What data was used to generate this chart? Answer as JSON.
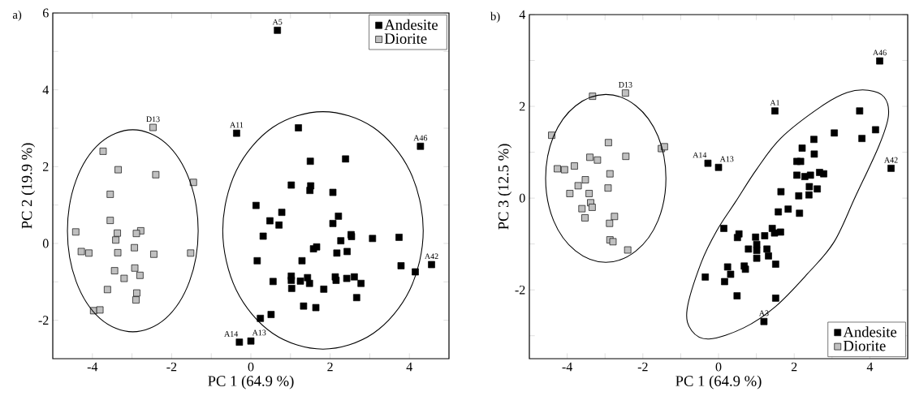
{
  "chart_data": [
    {
      "type": "scatter",
      "title": "a)",
      "xlabel": "PC 1 (64.9 %)",
      "ylabel": "PC 2 (19.9 %)",
      "xlim": [
        -5,
        5
      ],
      "ylim": [
        -3,
        6
      ],
      "legend": "top right",
      "xticks": [
        -4,
        {
          "value": -3,
          "label": null
        },
        -2,
        {
          "value": -1,
          "label": null
        },
        0,
        {
          "value": 1,
          "label": null
        },
        2,
        {
          "value": 3,
          "label": null
        },
        4
      ],
      "yticks": [
        -2,
        {
          "value": -1,
          "label": null
        },
        0,
        {
          "value": 1,
          "label": null
        },
        2,
        {
          "value": 3,
          "label": null
        },
        4,
        {
          "value": 5,
          "label": null
        },
        6
      ],
      "series": [
        {
          "name": "Andesite",
          "color": "#000000",
          "marker": "square",
          "x": [
            0.67,
            -0.36,
            1.2,
            4.28,
            1.5,
            2.39,
            1.02,
            1.51,
            1.49,
            2.07,
            0.13,
            0.78,
            0.48,
            0.71,
            2.07,
            2.21,
            0.31,
            2.53,
            2.54,
            2.27,
            3.07,
            3.74,
            1.58,
            1.66,
            2.17,
            2.43,
            0.16,
            1.29,
            3.79,
            4.56,
            4.15,
            0.56,
            1.02,
            1.02,
            1.25,
            1.43,
            1.48,
            1.03,
            2.13,
            2.15,
            2.42,
            2.61,
            2.78,
            1.84,
            2.67,
            1.33,
            1.64,
            0.51,
            0.24,
            -0.29,
            0.0
          ],
          "values": [
            5.55,
            2.87,
            3.01,
            2.53,
            2.14,
            2.2,
            1.52,
            1.5,
            1.38,
            1.33,
            0.99,
            0.81,
            0.59,
            0.48,
            0.52,
            0.71,
            0.19,
            0.23,
            0.18,
            0.07,
            0.13,
            0.16,
            -0.14,
            -0.09,
            -0.25,
            -0.21,
            -0.45,
            -0.45,
            -0.58,
            -0.55,
            -0.74,
            -0.99,
            -0.85,
            -0.96,
            -0.98,
            -0.89,
            -1.04,
            -1.17,
            -0.87,
            -0.96,
            -0.91,
            -0.87,
            -1.04,
            -1.19,
            -1.41,
            -1.63,
            -1.67,
            -1.85,
            -1.95,
            -2.57,
            -2.54
          ]
        },
        {
          "name": "Diorite",
          "color": "#c0c0c0",
          "marker": "square",
          "x": [
            -2.47,
            -3.73,
            -3.35,
            -2.4,
            -1.45,
            -3.55,
            -3.55,
            -4.42,
            -3.37,
            -2.78,
            -2.89,
            -3.41,
            -2.94,
            -4.28,
            -4.09,
            -3.36,
            -2.45,
            -1.52,
            -3.44,
            -2.93,
            -2.8,
            -3.2,
            -3.62,
            -2.88,
            -2.9,
            -3.97,
            -3.81
          ],
          "values": [
            3.02,
            2.4,
            1.92,
            1.79,
            1.59,
            1.28,
            0.6,
            0.3,
            0.27,
            0.33,
            0.26,
            0.09,
            -0.11,
            -0.21,
            -0.25,
            -0.24,
            -0.28,
            -0.25,
            -0.71,
            -0.64,
            -0.83,
            -0.91,
            -1.2,
            -1.29,
            -1.47,
            -1.75,
            -1.73
          ]
        }
      ],
      "annotations": [
        {
          "text": "A5",
          "x": 0.67,
          "y": 5.55
        },
        {
          "text": "A11",
          "x": -0.36,
          "y": 2.87
        },
        {
          "text": "D13",
          "x": -2.47,
          "y": 3.02
        },
        {
          "text": "A46",
          "x": 4.28,
          "y": 2.53
        },
        {
          "text": "A42",
          "x": 4.56,
          "y": -0.55
        },
        {
          "text": "A14",
          "x": -0.29,
          "y": -2.57
        },
        {
          "text": "A13",
          "x": 0.0,
          "y": -2.54
        }
      ]
    },
    {
      "type": "scatter",
      "title": "b)",
      "xlabel": "PC 1 (64.9 %)",
      "ylabel": "PC 3 (12.5 %)",
      "xlim": [
        -5,
        5
      ],
      "ylim": [
        -3.5,
        4
      ],
      "legend": "bottom right",
      "xticks": [
        -4,
        {
          "value": -3,
          "label": null
        },
        -2,
        {
          "value": -1,
          "label": null
        },
        0,
        {
          "value": 1,
          "label": null
        },
        2,
        {
          "value": 3,
          "label": null
        },
        4
      ],
      "yticks": [
        {
          "value": -3,
          "label": null
        },
        -2,
        {
          "value": -1,
          "label": null
        },
        0,
        {
          "value": 1,
          "label": null
        },
        2,
        {
          "value": 3,
          "label": null
        },
        4
      ],
      "series": [
        {
          "name": "Andesite",
          "color": "#000000",
          "marker": "square",
          "x": [
            4.26,
            1.49,
            3.73,
            4.15,
            3.06,
            3.79,
            2.52,
            2.21,
            2.53,
            -0.28,
            0.0,
            4.56,
            2.07,
            2.17,
            2.07,
            2.28,
            2.43,
            2.67,
            2.78,
            2.4,
            2.61,
            1.65,
            2.12,
            2.39,
            1.58,
            1.84,
            2.14,
            0.14,
            0.54,
            0.5,
            0.98,
            1.22,
            1.42,
            1.48,
            1.64,
            1.01,
            0.79,
            1.01,
            1.28,
            1.01,
            1.32,
            1.51,
            0.24,
            0.68,
            0.71,
            0.32,
            -0.35,
            0.16,
            0.49,
            1.51,
            1.2
          ],
          "values": [
            2.99,
            1.9,
            1.9,
            1.49,
            1.42,
            1.3,
            1.28,
            1.09,
            0.96,
            0.76,
            0.67,
            0.65,
            0.8,
            0.8,
            0.5,
            0.47,
            0.5,
            0.56,
            0.53,
            0.25,
            0.2,
            0.14,
            0.05,
            0.07,
            -0.3,
            -0.24,
            -0.33,
            -0.66,
            -0.78,
            -0.86,
            -0.85,
            -0.82,
            -0.66,
            -0.76,
            -0.74,
            -1.01,
            -1.11,
            -1.14,
            -1.11,
            -1.31,
            -1.26,
            -1.44,
            -1.5,
            -1.48,
            -1.55,
            -1.66,
            -1.72,
            -1.82,
            -2.13,
            -2.18,
            -2.69
          ]
        },
        {
          "name": "Diorite",
          "color": "#c0c0c0",
          "marker": "square",
          "x": [
            -2.46,
            -3.33,
            -4.41,
            -2.91,
            -1.51,
            -1.43,
            -2.45,
            -3.4,
            -3.2,
            -3.81,
            -4.26,
            -4.07,
            -2.87,
            -3.52,
            -3.71,
            -2.92,
            -3.93,
            -3.42,
            -3.38,
            -3.34,
            -3.61,
            -3.53,
            -2.75,
            -2.88,
            -2.87,
            -2.79,
            -2.4
          ],
          "values": [
            2.29,
            2.22,
            1.37,
            1.21,
            1.08,
            1.12,
            0.91,
            0.89,
            0.83,
            0.7,
            0.64,
            0.62,
            0.53,
            0.4,
            0.27,
            0.22,
            0.1,
            0.1,
            -0.1,
            -0.2,
            -0.23,
            -0.43,
            -0.4,
            -0.55,
            -0.91,
            -0.95,
            -1.13
          ]
        }
      ],
      "annotations": [
        {
          "text": "D13",
          "x": -2.46,
          "y": 2.29
        },
        {
          "text": "A46",
          "x": 4.26,
          "y": 2.99
        },
        {
          "text": "A1",
          "x": 1.49,
          "y": 1.9
        },
        {
          "text": "A14",
          "x": -0.28,
          "y": 0.76
        },
        {
          "text": "A13",
          "x": 0.0,
          "y": 0.67
        },
        {
          "text": "A42",
          "x": 4.56,
          "y": 0.65
        },
        {
          "text": "A3",
          "x": 1.2,
          "y": -2.69
        }
      ]
    }
  ]
}
